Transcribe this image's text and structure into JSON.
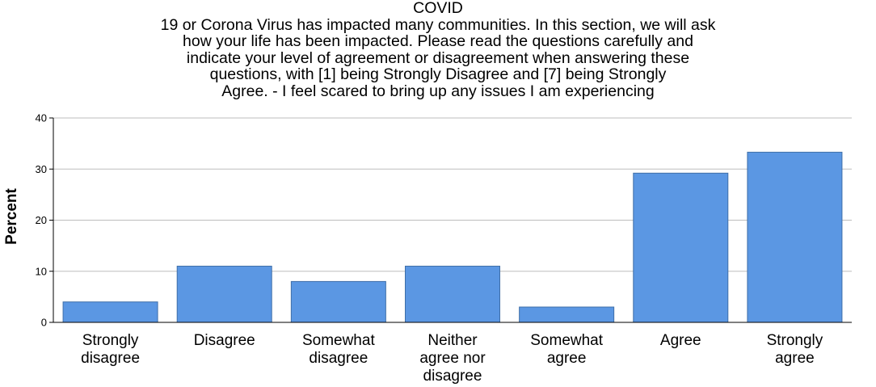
{
  "chart_data": {
    "type": "bar",
    "title_lines": [
      "COVID",
      "19 or Corona Virus has impacted many communities. In this section, we will ask",
      "how your life has been impacted. Please read the questions carefully and",
      "indicate your level of agreement or disagreement when answering these",
      "questions, with [1] being Strongly Disagree and [7] being Strongly",
      "Agree. - I feel scared to bring up any issues I am experiencing"
    ],
    "categories": [
      [
        "Strongly",
        "disagree"
      ],
      [
        "Disagree"
      ],
      [
        "Somewhat",
        "disagree"
      ],
      [
        "Neither",
        "agree nor",
        "disagree"
      ],
      [
        "Somewhat",
        "agree"
      ],
      [
        "Agree"
      ],
      [
        "Strongly",
        "agree"
      ]
    ],
    "values": [
      4,
      11,
      8,
      11,
      3,
      29.2,
      33.3
    ],
    "ylabel": "Percent",
    "ylim": [
      0,
      40
    ],
    "yticks": [
      0,
      10,
      20,
      30,
      40
    ],
    "grid": true,
    "bar_color": "#5b97e3",
    "bar_edge_color": "#3f6fa8",
    "grid_color": "#bdbdbd"
  }
}
